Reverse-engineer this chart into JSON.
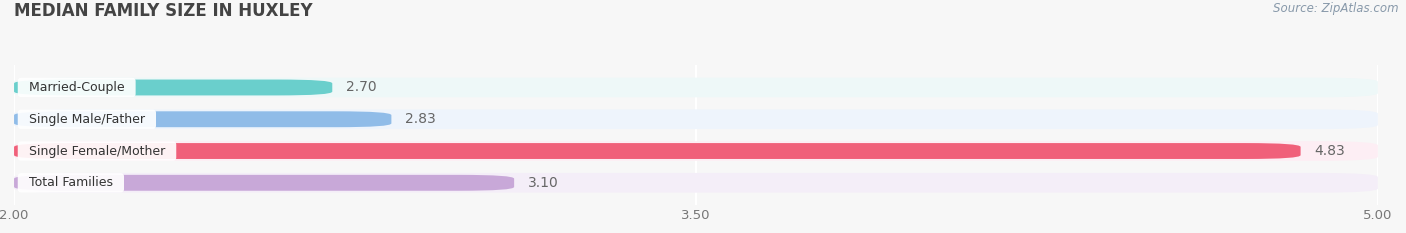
{
  "title": "MEDIAN FAMILY SIZE IN HUXLEY",
  "source": "Source: ZipAtlas.com",
  "categories": [
    "Married-Couple",
    "Single Male/Father",
    "Single Female/Mother",
    "Total Families"
  ],
  "values": [
    2.7,
    2.83,
    4.83,
    3.1
  ],
  "bar_colors": [
    "#6acfcc",
    "#90bce8",
    "#f0607a",
    "#c8a8d8"
  ],
  "bar_bg_colors": [
    "#eef8f8",
    "#eef4fc",
    "#fdeef4",
    "#f4eef8"
  ],
  "xmin": 2.0,
  "xmax": 5.0,
  "xticks": [
    2.0,
    3.5,
    5.0
  ],
  "xtick_labels": [
    "2.00",
    "3.50",
    "5.00"
  ],
  "value_color": "#666666",
  "title_color": "#444444",
  "title_fontsize": 12,
  "bar_height": 0.62,
  "bg_color": "#f7f7f7",
  "source_color": "#8899aa"
}
